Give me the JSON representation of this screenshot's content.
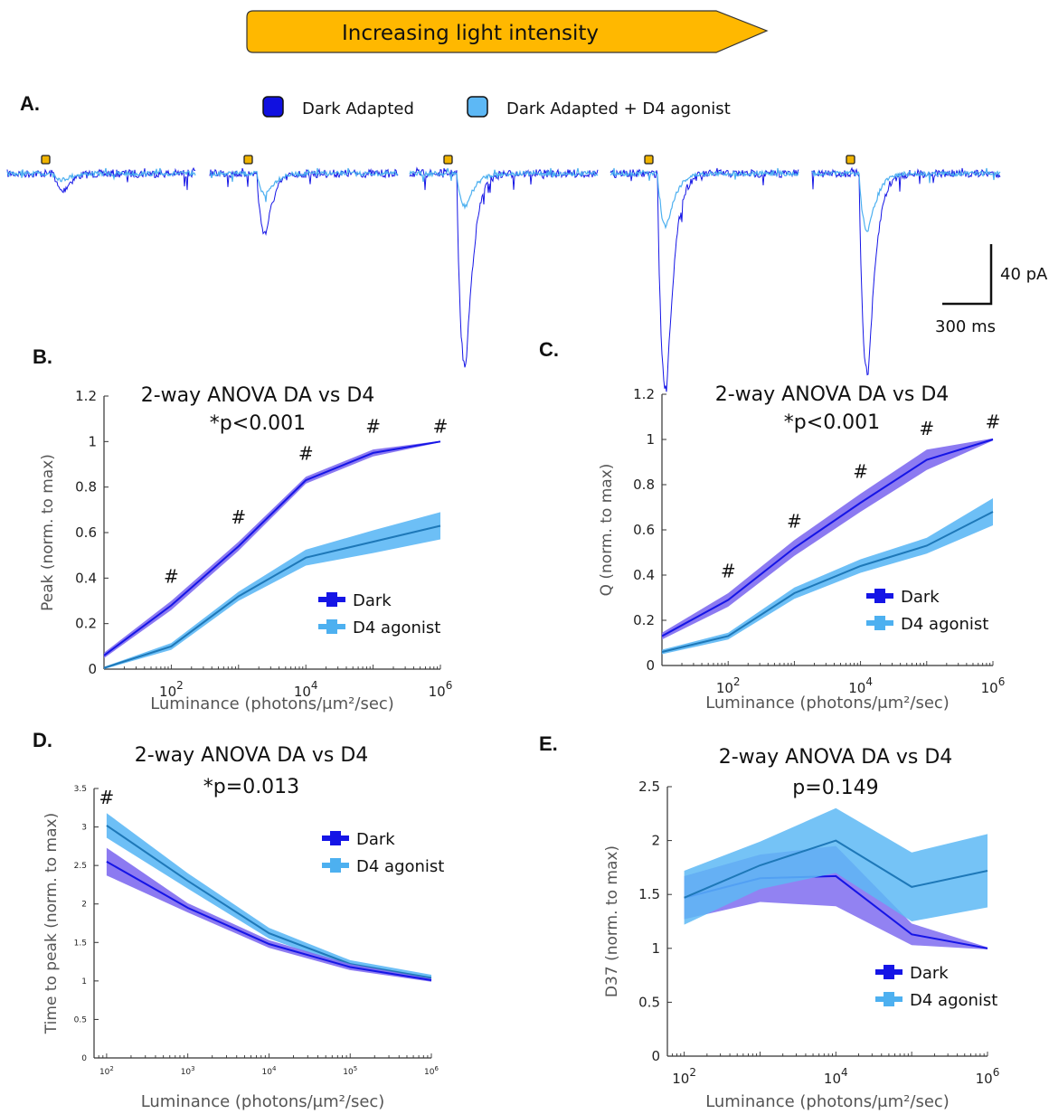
{
  "banner": {
    "label": "Increasing light intensity",
    "color": "#FFB800"
  },
  "colors": {
    "dark": "#1515E6",
    "dark_band": "#7F6CF0",
    "d4": "#4DB0F0",
    "d4_band": "#5DB8F5",
    "d4_line": "#1E78B8",
    "stim": "#F0B400"
  },
  "panelA": {
    "letter": "A.",
    "legend": [
      "Dark Adapted",
      "Dark Adapted + D4 agonist"
    ],
    "scalebar": {
      "y_label": "40 pA",
      "x_label": "300 ms"
    },
    "sweeps": [
      {
        "dark_peak_pA": 12,
        "d4_peak_pA": 4
      },
      {
        "dark_peak_pA": 40,
        "d4_peak_pA": 14
      },
      {
        "dark_peak_pA": 130,
        "d4_peak_pA": 22
      },
      {
        "dark_peak_pA": 145,
        "d4_peak_pA": 35
      },
      {
        "dark_peak_pA": 135,
        "d4_peak_pA": 38
      }
    ]
  },
  "chart_data": [
    {
      "panel": "B.",
      "type": "line",
      "title": "2-way ANOVA DA vs D4",
      "subtitle": "*p<0.001",
      "xlabel": "Luminance (photons/μm²/sec)",
      "ylabel": "Peak (norm. to max)",
      "xscale": "log",
      "xlim": [
        10,
        1000000
      ],
      "ylim": [
        0,
        1.2
      ],
      "yticks": [
        "0",
        "0.2",
        "0.4",
        "0.6",
        "0.8",
        "1",
        "1.2"
      ],
      "xticks": [
        {
          "base": "10",
          "exp": "2",
          "v": 100
        },
        {
          "base": "10",
          "exp": "4",
          "v": 10000
        },
        {
          "base": "10",
          "exp": "6",
          "v": 1000000
        }
      ],
      "x": [
        10,
        100,
        1000,
        10000,
        100000,
        1000000
      ],
      "series": [
        {
          "name": "Dark",
          "values": [
            0.06,
            0.28,
            0.54,
            0.83,
            0.95,
            1.0
          ],
          "err": [
            0.012,
            0.02,
            0.02,
            0.015,
            0.015,
            0.003
          ]
        },
        {
          "name": "D4 agonist",
          "values": [
            0.005,
            0.1,
            0.32,
            0.49,
            0.56,
            0.63
          ],
          "err": [
            0.005,
            0.015,
            0.02,
            0.035,
            0.05,
            0.06
          ]
        }
      ],
      "markers": [
        {
          "x": 100,
          "y": 0.38
        },
        {
          "x": 1000,
          "y": 0.64
        },
        {
          "x": 10000,
          "y": 0.92
        },
        {
          "x": 100000,
          "y": 1.04
        },
        {
          "x": 1000000,
          "y": 1.04
        }
      ],
      "marker_text": "#",
      "legend": "lower-right"
    },
    {
      "panel": "C.",
      "type": "line",
      "title": "2-way ANOVA DA vs D4",
      "subtitle": "*p<0.001",
      "xlabel": "Luminance (photons/μm²/sec)",
      "ylabel": "Q (norm. to max)",
      "xscale": "log",
      "xlim": [
        10,
        1000000
      ],
      "ylim": [
        0,
        1.2
      ],
      "yticks": [
        "0",
        "0.2",
        "0.4",
        "0.6",
        "0.8",
        "1",
        "1.2"
      ],
      "xticks": [
        {
          "base": "10",
          "exp": "2",
          "v": 100
        },
        {
          "base": "10",
          "exp": "4",
          "v": 10000
        },
        {
          "base": "10",
          "exp": "6",
          "v": 1000000
        }
      ],
      "x": [
        10,
        100,
        1000,
        10000,
        100000,
        1000000
      ],
      "series": [
        {
          "name": "Dark",
          "values": [
            0.13,
            0.29,
            0.52,
            0.72,
            0.91,
            1.0
          ],
          "err": [
            0.015,
            0.03,
            0.035,
            0.04,
            0.045,
            0.005
          ]
        },
        {
          "name": "D4 agonist",
          "values": [
            0.06,
            0.13,
            0.32,
            0.44,
            0.53,
            0.68
          ],
          "err": [
            0.01,
            0.015,
            0.025,
            0.03,
            0.035,
            0.06
          ]
        }
      ],
      "markers": [
        {
          "x": 100,
          "y": 0.39
        },
        {
          "x": 1000,
          "y": 0.61
        },
        {
          "x": 10000,
          "y": 0.83
        },
        {
          "x": 100000,
          "y": 1.02
        },
        {
          "x": 1000000,
          "y": 1.05
        }
      ],
      "marker_text": "#",
      "legend": "lower-right"
    },
    {
      "panel": "D.",
      "type": "line",
      "title": "2-way ANOVA DA vs D4",
      "subtitle": "*p=0.013",
      "xlabel": "Luminance (photons/μm²/sec)",
      "ylabel": "Time to peak (norm. to max)",
      "xscale": "log",
      "xlim": [
        70,
        1000000
      ],
      "ylim": [
        0,
        3.5
      ],
      "yticks": [
        "0",
        "0.5",
        "1",
        "1.5",
        "2",
        "2.5",
        "3",
        "3.5"
      ],
      "xticks": [
        {
          "base": "10",
          "exp": "2",
          "v": 100
        },
        {
          "base": "10",
          "exp": "3",
          "v": 1000
        },
        {
          "base": "10",
          "exp": "4",
          "v": 10000
        },
        {
          "base": "10",
          "exp": "5",
          "v": 100000
        },
        {
          "base": "10",
          "exp": "6",
          "v": 1000000
        }
      ],
      "x": [
        100,
        1000,
        10000,
        100000,
        1000000
      ],
      "series": [
        {
          "name": "Dark",
          "values": [
            2.55,
            1.95,
            1.48,
            1.18,
            1.01
          ],
          "err": [
            0.18,
            0.06,
            0.05,
            0.04,
            0.02
          ]
        },
        {
          "name": "D4 agonist",
          "values": [
            3.02,
            2.3,
            1.62,
            1.22,
            1.04
          ],
          "err": [
            0.16,
            0.1,
            0.07,
            0.05,
            0.04
          ]
        }
      ],
      "markers": [
        {
          "x": 100,
          "y": 3.3
        }
      ],
      "marker_text": "#",
      "legend": "upper-right"
    },
    {
      "panel": "E.",
      "type": "line",
      "title": "2-way ANOVA DA vs D4",
      "subtitle": "p=0.149",
      "xlabel": "Luminance (photons/μm²/sec)",
      "ylabel": "D37 (norm. to max)",
      "xscale": "log",
      "xlim": [
        60,
        1000000
      ],
      "ylim": [
        0,
        2.5
      ],
      "yticks": [
        "0",
        "0.5",
        "1",
        "1.5",
        "2",
        "2.5"
      ],
      "xticks": [
        {
          "base": "10",
          "exp": "2",
          "v": 100
        },
        {
          "base": "10",
          "exp": "4",
          "v": 10000
        },
        {
          "base": "10",
          "exp": "6",
          "v": 1000000
        }
      ],
      "x": [
        100,
        1000,
        10000,
        100000,
        1000000
      ],
      "series": [
        {
          "name": "Dark",
          "values": [
            1.47,
            1.65,
            1.67,
            1.13,
            1.0
          ],
          "err": [
            0.2,
            0.22,
            0.28,
            0.1,
            0.01
          ]
        },
        {
          "name": "D4 agonist",
          "values": [
            1.47,
            1.77,
            2.0,
            1.57,
            1.72
          ],
          "err": [
            0.25,
            0.22,
            0.3,
            0.32,
            0.34
          ]
        }
      ],
      "markers": [],
      "marker_text": "#",
      "legend": "lower-right"
    }
  ]
}
